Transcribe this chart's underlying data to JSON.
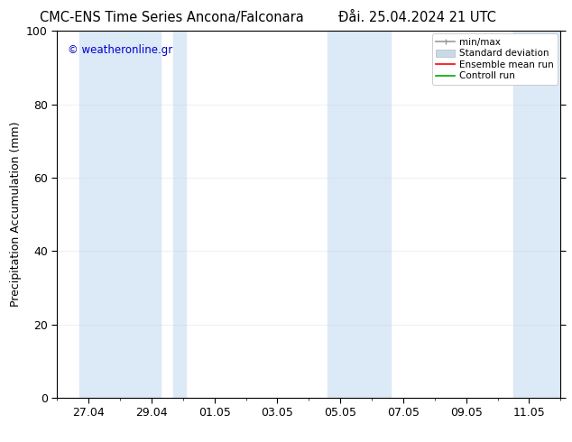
{
  "title_left": "CMC-ENS Time Series Ancona/Falconara",
  "title_right": "Đåi. 25.04.2024 21 UTC",
  "ylabel": "Precipitation Accumulation (mm)",
  "watermark": "© weatheronline.gr",
  "watermark_color": "#0000cc",
  "ylim": [
    0,
    100
  ],
  "yticks": [
    0,
    20,
    40,
    60,
    80,
    100
  ],
  "xtick_labels": [
    "27.04",
    "29.04",
    "01.05",
    "03.05",
    "05.05",
    "07.05",
    "09.05",
    "11.05"
  ],
  "xtick_positions": [
    1,
    3,
    5,
    7,
    9,
    11,
    13,
    15
  ],
  "xlim": [
    0,
    16
  ],
  "background_color": "#ffffff",
  "plot_bg_color": "#ffffff",
  "band_color": "#dce9f7",
  "band_alpha": 1.0,
  "bands": [
    [
      0.7,
      3.3
    ],
    [
      3.7,
      4.1
    ],
    [
      8.6,
      10.6
    ],
    [
      14.5,
      16.1
    ]
  ],
  "legend_labels": [
    "min/max",
    "Standard deviation",
    "Ensemble mean run",
    "Controll run"
  ],
  "legend_minmax_color": "#999999",
  "legend_std_color": "#c8daea",
  "legend_ens_color": "#ff0000",
  "legend_ctrl_color": "#00aa00",
  "grid_color": "#cccccc",
  "font_size": 9,
  "title_font_size": 10.5
}
